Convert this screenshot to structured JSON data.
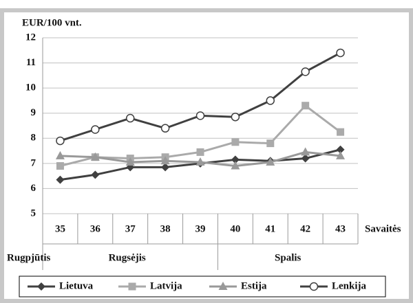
{
  "chart_data": {
    "type": "line",
    "y_axis_label": "EUR/100 vnt.",
    "x_axis_label": "Savaitės",
    "categories": [
      "35",
      "36",
      "37",
      "38",
      "39",
      "40",
      "41",
      "42",
      "43"
    ],
    "months": [
      "Rugpjūtis",
      "Rugsėjis",
      "Spalis"
    ],
    "ylim": [
      5,
      12
    ],
    "yticks": [
      5,
      6,
      7,
      8,
      9,
      10,
      11,
      12
    ],
    "grid": true,
    "legend": "bottom",
    "series": [
      {
        "name": "Lietuva",
        "color": "#404040",
        "marker": "diamond",
        "values": [
          6.35,
          6.55,
          6.85,
          6.85,
          7.0,
          7.15,
          7.1,
          7.2,
          7.55
        ]
      },
      {
        "name": "Latvija",
        "color": "#aaaaaa",
        "marker": "square",
        "values": [
          6.9,
          7.25,
          7.2,
          7.25,
          7.45,
          7.85,
          7.8,
          9.3,
          8.25
        ]
      },
      {
        "name": "Estija",
        "color": "#999999",
        "marker": "triangle",
        "values": [
          7.3,
          7.25,
          7.05,
          7.1,
          7.05,
          6.9,
          7.05,
          7.45,
          7.3
        ]
      },
      {
        "name": "Lenkija",
        "color": "#404040",
        "marker": "circle",
        "values": [
          7.9,
          8.35,
          8.8,
          8.4,
          8.9,
          8.85,
          9.5,
          10.65,
          11.4
        ]
      }
    ]
  }
}
